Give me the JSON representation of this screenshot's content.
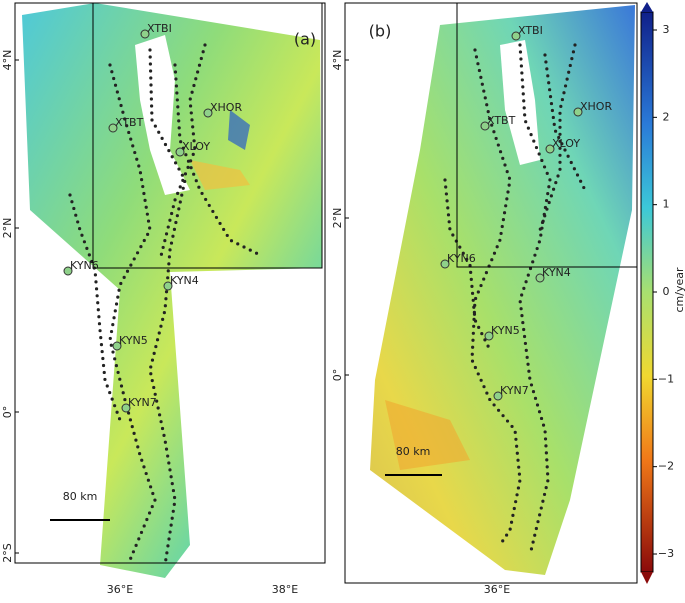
{
  "panels": [
    {
      "label": "(a)",
      "lat_ticks": [
        "4°N",
        "2°N",
        "0°",
        "2°S"
      ],
      "lon_ticks": [
        "36°E",
        "38°E"
      ],
      "scale_bar": "80 km",
      "stations": [
        "XTBI",
        "XTBT",
        "XHOR",
        "XLOY",
        "KYN6",
        "KYN4",
        "KYN5",
        "KYN7"
      ]
    },
    {
      "label": "(b)",
      "lat_ticks": [
        "4°N",
        "2°N",
        "0°"
      ],
      "lon_ticks": [
        "36°E"
      ],
      "scale_bar": "80 km",
      "stations": [
        "XTBI",
        "XTBT",
        "XHOR",
        "XLOY",
        "KYN6",
        "KYN4",
        "KYN5",
        "KYN7"
      ]
    }
  ],
  "colorbar": {
    "label": "cm/year",
    "ticks": [
      3,
      2,
      1,
      0,
      {
        "value": -1,
        "label": "−1"
      },
      {
        "value": -2,
        "label": "−2"
      },
      {
        "value": -3,
        "label": "−3"
      }
    ]
  }
}
